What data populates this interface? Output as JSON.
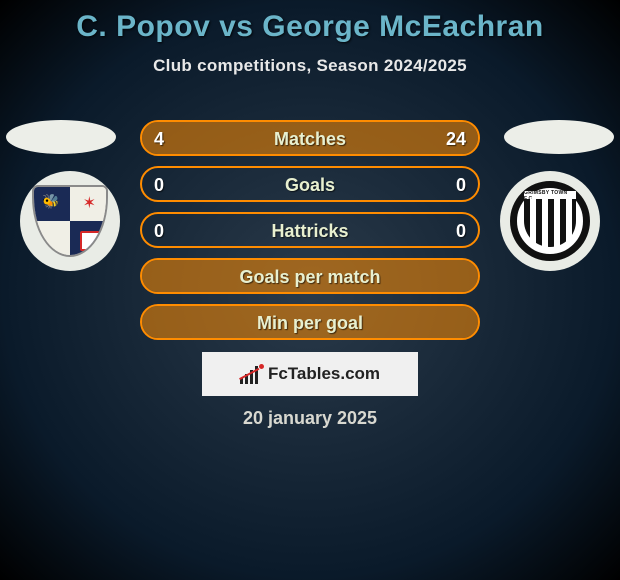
{
  "header": {
    "title": "C. Popov vs George McEachran",
    "subtitle": "Club competitions, Season 2024/2025",
    "title_color": "#6bb5c9",
    "subtitle_color": "#e8e8e8"
  },
  "stats": {
    "row_border_color": "#ff8c00",
    "fill_color": "rgba(255,140,0,0.55)",
    "label_color": "#e8f0d0",
    "value_color": "#ffffff",
    "rows": [
      {
        "label": "Matches",
        "left": "4",
        "right": "24",
        "left_w": 14,
        "right_w": 86
      },
      {
        "label": "Goals",
        "left": "0",
        "right": "0",
        "left_w": 0,
        "right_w": 0
      },
      {
        "label": "Hattricks",
        "left": "0",
        "right": "0",
        "left_w": 0,
        "right_w": 0
      },
      {
        "label": "Goals per match",
        "left": "",
        "right": "",
        "left_w": 100,
        "right_w": 0
      },
      {
        "label": "Min per goal",
        "left": "",
        "right": "",
        "left_w": 100,
        "right_w": 0
      }
    ]
  },
  "brand": {
    "text": "FcTables.com",
    "box_bg": "#f0f0f0",
    "text_color": "#222222"
  },
  "date": {
    "text": "20 january 2025",
    "color": "#d8d8d0"
  },
  "clubs": {
    "left": {
      "name": "Barrow AFC",
      "ring_bg": "#e9ece6"
    },
    "right": {
      "name": "Grimsby Town",
      "ring_bg": "#e9ece6"
    }
  },
  "ovals": {
    "bg": "#eceee8"
  },
  "page_bg": {
    "inner": "#2a3a4a",
    "outer": "#0a1a2a"
  }
}
